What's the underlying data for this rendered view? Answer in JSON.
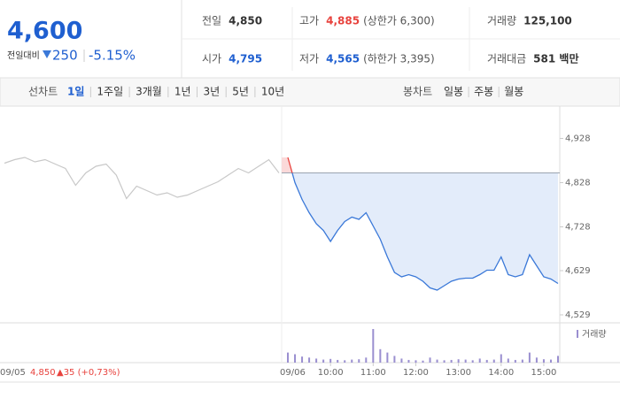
{
  "quote": {
    "price": "4,600",
    "change_label": "전일대비",
    "change": "250",
    "change_rate": "-5.15%"
  },
  "stats": [
    {
      "label": "전일",
      "value": "4,850"
    },
    {
      "label": "고가",
      "value": "4,885",
      "note": "(상한가 6,300)"
    },
    {
      "label": "거래량",
      "value": "125,100"
    },
    {
      "label": "시가",
      "value": "4,795"
    },
    {
      "label": "저가",
      "value": "4,565",
      "note": "(하한가 3,395)"
    },
    {
      "label": "거래대금",
      "value": "581 백만"
    }
  ],
  "tabs": {
    "line_label": "선차트",
    "line_options": [
      "1일",
      "1주일",
      "3개월",
      "1년",
      "3년",
      "5년",
      "10년"
    ],
    "candle_label": "봉차트",
    "candle_options": [
      "일봉",
      "주봉",
      "월봉"
    ]
  },
  "chart_data": {
    "type": "line",
    "x": [
      "09:00",
      "09:10",
      "09:20",
      "09:30",
      "09:40",
      "09:50",
      "10:00",
      "10:10",
      "10:20",
      "10:30",
      "10:40",
      "10:50",
      "11:00",
      "11:10",
      "11:20",
      "11:30",
      "11:40",
      "11:50",
      "12:00",
      "12:10",
      "12:20",
      "12:30",
      "12:40",
      "12:50",
      "13:00",
      "13:10",
      "13:20",
      "13:30",
      "13:40",
      "13:50",
      "14:00",
      "14:10",
      "14:20",
      "14:30",
      "14:40",
      "14:50",
      "15:00",
      "15:10",
      "15:20"
    ],
    "xlim": [
      "09:00",
      "15:20"
    ],
    "xticks": [
      "10:00",
      "11:00",
      "12:00",
      "13:00",
      "14:00",
      "15:00"
    ],
    "series": [
      {
        "color": "#3a78d8",
        "values": [
          4885,
          4828,
          4790,
          4760,
          4735,
          4720,
          4695,
          4720,
          4740,
          4750,
          4745,
          4760,
          4730,
          4700,
          4660,
          4625,
          4615,
          4620,
          4615,
          4605,
          4590,
          4585,
          4595,
          4605,
          4610,
          4612,
          4612,
          4620,
          4630,
          4630,
          4660,
          4620,
          4615,
          4620,
          4665,
          4640,
          4615,
          4610,
          4600
        ]
      },
      {
        "name": "거래량",
        "color": "#9a8fd0",
        "values": [
          3000,
          2500,
          1800,
          1500,
          1200,
          900,
          1100,
          800,
          700,
          900,
          1000,
          1500,
          10000,
          4000,
          3000,
          2000,
          1200,
          800,
          700,
          600,
          1500,
          900,
          700,
          800,
          1000,
          900,
          700,
          1200,
          800,
          900,
          2500,
          1200,
          800,
          900,
          3000,
          1500,
          1000,
          900,
          2000
        ]
      }
    ],
    "volume_lim": [
      0,
      10000
    ],
    "previous": {
      "color": "#c8c8c8",
      "values": [
        4872,
        4880,
        4885,
        4875,
        4880,
        4870,
        4860,
        4822,
        4850,
        4865,
        4870,
        4845,
        4792,
        4820,
        4810,
        4800,
        4805,
        4795,
        4800,
        4810,
        4820,
        4830,
        4845,
        4860,
        4850,
        4865,
        4880,
        4850
      ]
    },
    "reference": 4850,
    "ylim": [
      4527,
      4945
    ],
    "yticks": [
      {
        "value": 4529,
        "label": "4,529"
      },
      {
        "value": 4629,
        "label": "4,629"
      },
      {
        "value": 4728,
        "label": "4,728"
      },
      {
        "value": 4828,
        "label": "4,828"
      },
      {
        "value": 4928,
        "label": "4,928"
      }
    ],
    "prev_date": "09/05",
    "prev_close": "4,850",
    "prev_change": "▲35 (+0,73%)",
    "date": "09/06"
  }
}
